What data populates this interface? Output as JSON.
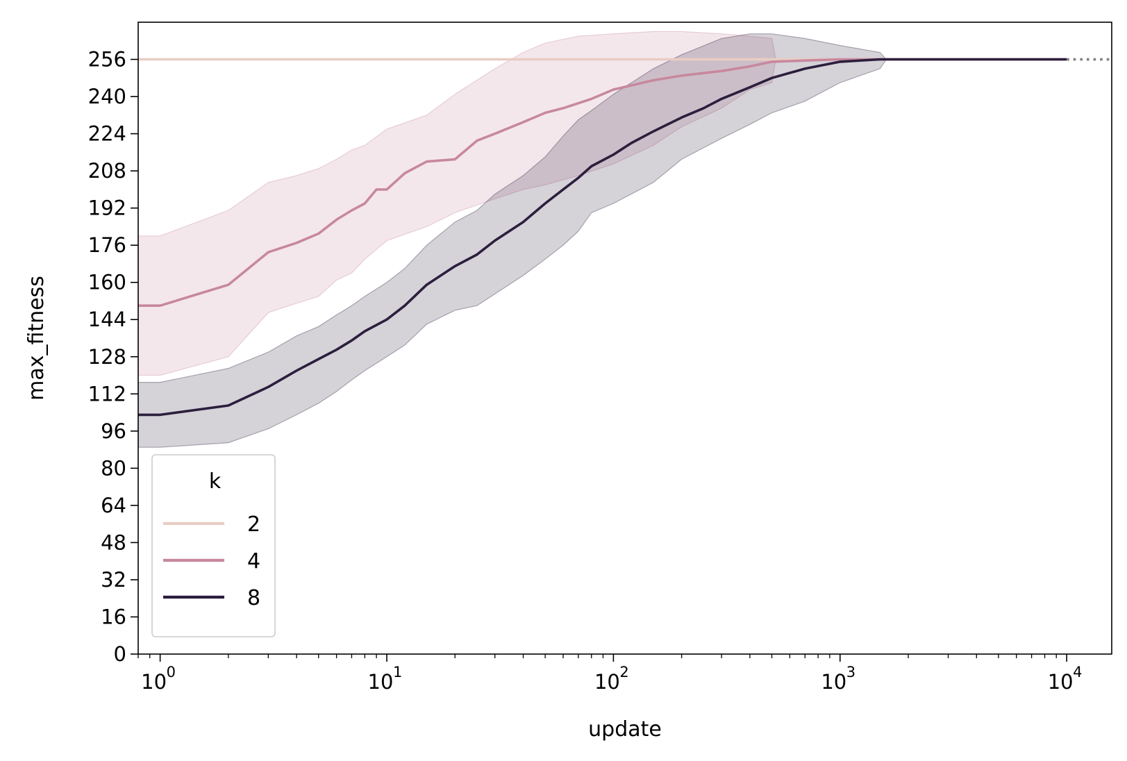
{
  "chart_data": {
    "type": "line",
    "xlabel": "update",
    "ylabel": "max_fitness",
    "xscale": "log",
    "xlim": [
      0.8,
      15800
    ],
    "ylim": [
      0,
      272
    ],
    "x_ticks": [
      1,
      10,
      100,
      1000,
      10000
    ],
    "x_tick_labels": [
      {
        "base": "10",
        "exp": "0"
      },
      {
        "base": "10",
        "exp": "1"
      },
      {
        "base": "10",
        "exp": "2"
      },
      {
        "base": "10",
        "exp": "3"
      },
      {
        "base": "10",
        "exp": "4"
      }
    ],
    "y_ticks": [
      0,
      16,
      32,
      48,
      64,
      80,
      96,
      112,
      128,
      144,
      160,
      176,
      192,
      208,
      224,
      240,
      256
    ],
    "grid": false,
    "legend": {
      "title": "k",
      "placement": "lower-left"
    },
    "reference_line": {
      "y": 256,
      "style": "dotted",
      "color": "#808080"
    },
    "series": [
      {
        "name": "2",
        "color": "#e8cdc4",
        "x": [
          0.8,
          10000
        ],
        "y": [
          256,
          256
        ],
        "ci_x": [
          0.8,
          10000
        ],
        "ci_lower": [
          256,
          256
        ],
        "ci_upper": [
          256,
          256
        ]
      },
      {
        "name": "4",
        "color": "#c7889d",
        "x": [
          0.8,
          1,
          2,
          3,
          4,
          5,
          6,
          7,
          8,
          9,
          10,
          12,
          15,
          20,
          25,
          30,
          40,
          50,
          60,
          80,
          100,
          150,
          200,
          300,
          400,
          500,
          700,
          1000,
          1500,
          3000,
          10000
        ],
        "y": [
          150,
          150,
          159,
          173,
          177,
          181,
          187,
          191,
          194,
          200,
          200,
          207,
          212,
          213,
          221,
          224,
          229,
          233,
          235,
          239,
          243,
          247,
          249,
          251,
          253,
          255,
          255.5,
          256,
          256,
          256,
          256
        ],
        "ci_x": [
          0.8,
          1,
          2,
          3,
          4,
          5,
          6,
          7,
          8,
          10,
          15,
          20,
          30,
          40,
          50,
          70,
          100,
          150,
          200,
          300,
          400,
          500,
          520,
          700,
          1000,
          1500,
          3000,
          10000
        ],
        "ci_lower": [
          120,
          120,
          128,
          147,
          151,
          154,
          161,
          164,
          170,
          178,
          184,
          190,
          196,
          200,
          202,
          206,
          211,
          219,
          227,
          235,
          243,
          246,
          256,
          256,
          256,
          256,
          256,
          256
        ],
        "ci_upper": [
          180,
          180,
          191,
          203,
          206,
          209,
          213,
          217,
          219,
          226,
          232,
          241,
          252,
          259,
          263,
          266,
          267,
          268,
          268,
          267,
          266,
          265,
          256,
          256,
          256,
          256,
          256,
          256
        ]
      },
      {
        "name": "8",
        "color": "#2c1e3d",
        "x": [
          0.8,
          1,
          2,
          3,
          4,
          5,
          6,
          7,
          8,
          10,
          12,
          15,
          20,
          25,
          30,
          40,
          50,
          60,
          70,
          80,
          100,
          120,
          150,
          200,
          250,
          300,
          400,
          500,
          700,
          1000,
          1500,
          3000,
          10000
        ],
        "y": [
          103,
          103,
          107,
          115,
          122,
          127,
          131,
          135,
          139,
          144,
          150,
          159,
          167,
          172,
          178,
          186,
          194,
          200,
          205,
          210,
          215,
          220,
          225,
          231,
          235,
          239,
          244,
          248,
          252,
          255,
          256,
          256,
          256
        ],
        "ci_x": [
          0.8,
          1,
          2,
          3,
          4,
          5,
          6,
          7,
          8,
          10,
          12,
          15,
          20,
          25,
          30,
          40,
          50,
          60,
          70,
          80,
          100,
          150,
          200,
          300,
          400,
          500,
          700,
          1000,
          1500,
          1600,
          3000,
          10000
        ],
        "ci_lower": [
          89,
          89,
          91,
          97,
          103,
          108,
          113,
          118,
          122,
          128,
          133,
          142,
          148,
          150,
          155,
          163,
          170,
          176,
          182,
          190,
          194,
          203,
          213,
          222,
          228,
          233,
          238,
          246,
          252,
          256,
          256,
          256
        ],
        "ci_upper": [
          117,
          117,
          123,
          130,
          137,
          141,
          146,
          150,
          154,
          160,
          166,
          176,
          186,
          191,
          198,
          206,
          214,
          223,
          230,
          234,
          241,
          252,
          258,
          265,
          267,
          267,
          265,
          262,
          259,
          256,
          256,
          256
        ]
      }
    ]
  }
}
